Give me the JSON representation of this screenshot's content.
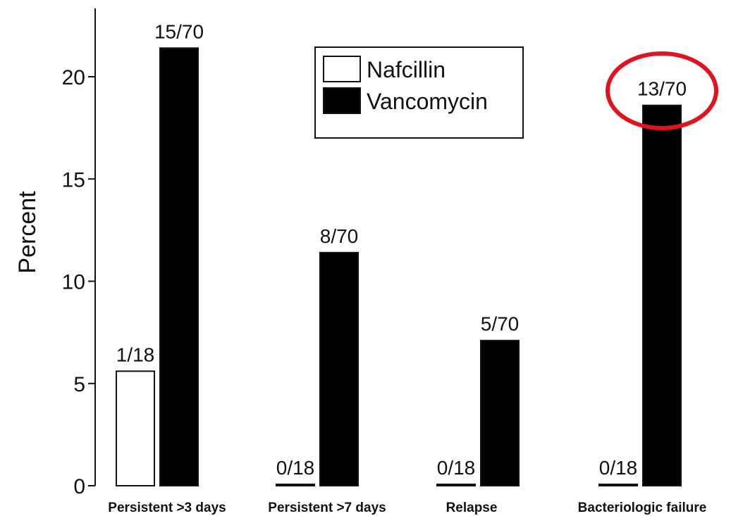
{
  "chart_data": {
    "type": "bar",
    "ylabel": "Percent",
    "ylim": [
      0,
      22.7
    ],
    "yticks": [
      0,
      5,
      10,
      15,
      20
    ],
    "grid": false,
    "legend_position": "top-center",
    "categories": [
      "Persistent >3 days",
      "Persistent >7 days",
      "Relapse",
      "Bacteriologic failure"
    ],
    "series": [
      {
        "name": "Nafcillin",
        "color": "#ffffff",
        "values": [
          5.6,
          0,
          0,
          0
        ],
        "labels": [
          "1/18",
          "0/18",
          "0/18",
          "0/18"
        ]
      },
      {
        "name": "Vancomycin",
        "color": "#000000",
        "values": [
          21.4,
          11.4,
          7.1,
          18.6
        ],
        "labels": [
          "15/70",
          "8/70",
          "5/70",
          "13/70"
        ]
      }
    ],
    "highlight": {
      "category_index": 3,
      "series_index": 1,
      "shape": "ellipse",
      "color": "#e0141e"
    }
  }
}
